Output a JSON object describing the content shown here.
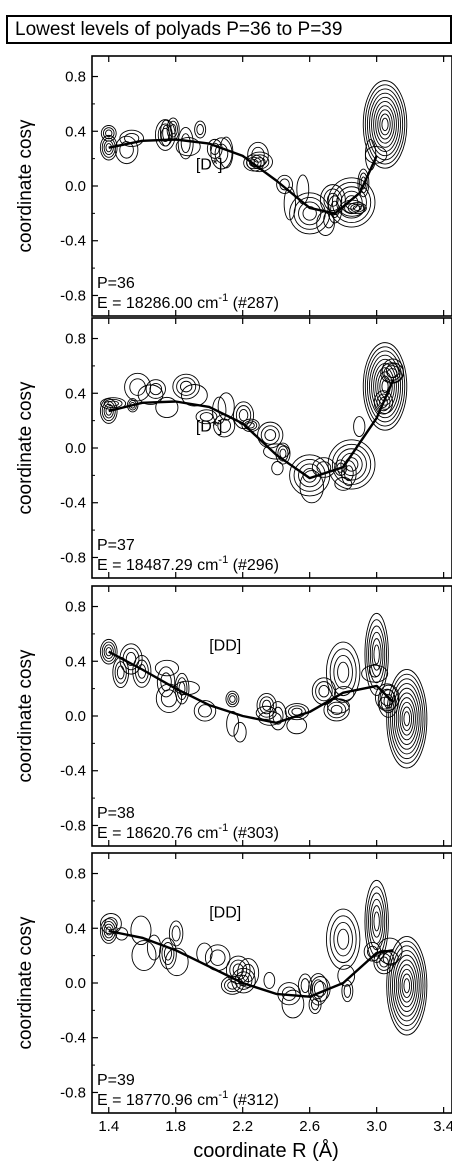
{
  "title": "Lowest levels of polyads P=36 to P=39",
  "chart_data": {
    "type": "contour",
    "xlabel": "coordinate  R (Å)",
    "ylabel": "coordinate  cosγ",
    "xlim": [
      1.3,
      3.45
    ],
    "ylim": [
      -0.95,
      0.95
    ],
    "x_ticks": [
      "1.4",
      "1.8",
      "2.2",
      "2.6",
      "3.0",
      "3.4"
    ],
    "y_ticks": [
      "0.8",
      "0.4",
      "0.0",
      "-0.4",
      "-0.8"
    ],
    "panels": [
      {
        "polyad": "P=36",
        "energy_label": "E = 18286.00 cm",
        "energy_sup": "-1",
        "state": "(#287)",
        "path_label": "[D*]",
        "path": [
          [
            1.4,
            0.28
          ],
          [
            1.6,
            0.33
          ],
          [
            1.8,
            0.34
          ],
          [
            2.0,
            0.31
          ],
          [
            2.2,
            0.22
          ],
          [
            2.4,
            0.04
          ],
          [
            2.6,
            -0.16
          ],
          [
            2.75,
            -0.2
          ],
          [
            2.9,
            -0.05
          ],
          [
            3.0,
            0.22
          ]
        ]
      },
      {
        "polyad": "P=37",
        "energy_label": "E = 18487.29 cm",
        "energy_sup": "-1",
        "state": "(#296)",
        "path_label": "[D*]",
        "path": [
          [
            1.4,
            0.27
          ],
          [
            1.6,
            0.33
          ],
          [
            1.8,
            0.34
          ],
          [
            2.0,
            0.3
          ],
          [
            2.2,
            0.18
          ],
          [
            2.4,
            -0.05
          ],
          [
            2.6,
            -0.22
          ],
          [
            2.8,
            -0.14
          ],
          [
            3.0,
            0.22
          ],
          [
            3.1,
            0.5
          ]
        ]
      },
      {
        "polyad": "P=38",
        "energy_label": "E = 18620.76 cm",
        "energy_sup": "-1",
        "state": "(#303)",
        "path_label": "[DD]",
        "path": [
          [
            1.4,
            0.47
          ],
          [
            1.6,
            0.34
          ],
          [
            1.8,
            0.2
          ],
          [
            2.0,
            0.08
          ],
          [
            2.2,
            0.0
          ],
          [
            2.4,
            -0.05
          ],
          [
            2.6,
            0.03
          ],
          [
            2.8,
            0.17
          ],
          [
            3.0,
            0.22
          ],
          [
            3.1,
            0.1
          ]
        ]
      },
      {
        "polyad": "P=39",
        "energy_label": "E = 18770.96 cm",
        "energy_sup": "-1",
        "state": "(#312)",
        "path_label": "[DD]",
        "path": [
          [
            1.4,
            0.38
          ],
          [
            1.6,
            0.33
          ],
          [
            1.8,
            0.24
          ],
          [
            2.0,
            0.12
          ],
          [
            2.2,
            0.0
          ],
          [
            2.4,
            -0.08
          ],
          [
            2.6,
            -0.1
          ],
          [
            2.8,
            0.0
          ],
          [
            3.0,
            0.22
          ],
          [
            3.1,
            0.24
          ]
        ]
      }
    ]
  }
}
